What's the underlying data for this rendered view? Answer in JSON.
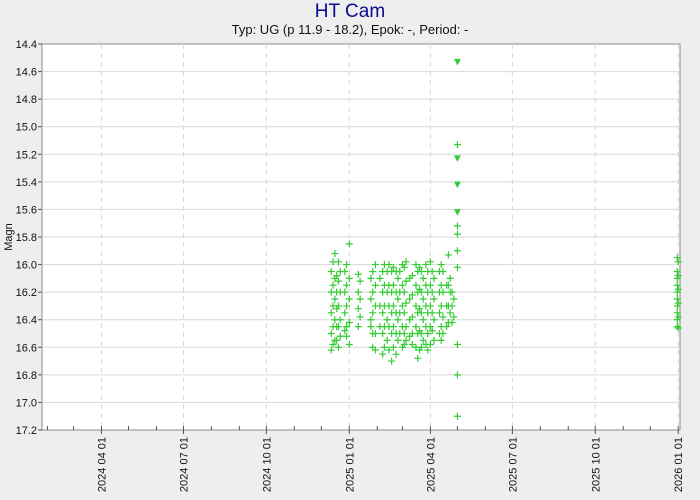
{
  "title": "HT Cam",
  "subtitle": "Typ: UG (p 11.9 - 18.2), Epok: -, Period: -",
  "colors": {
    "title": "#0a0a8c",
    "points": "#33cc33",
    "grid": "#d8d8d8",
    "background": "#eeeeee",
    "plot_background": "#ffffff"
  },
  "chart_data": {
    "type": "scatter",
    "title": "HT Cam",
    "subtitle": "Typ: UG (p 11.9 - 18.2), Epok: -, Period: -",
    "xlabel": "",
    "ylabel": "Magn",
    "xlim": [
      "2024-01-26",
      "2026-01-03"
    ],
    "ylim": [
      17.2,
      14.4
    ],
    "y_inverted": true,
    "grid": true,
    "x_ticks": [
      "2024 04 01",
      "2024 07 01",
      "2024 10 01",
      "2025 01 01",
      "2025 04 01",
      "2025 07 01",
      "2025 10 01",
      "2026 01 01"
    ],
    "y_ticks": [
      14.4,
      14.6,
      14.8,
      15.0,
      15.2,
      15.4,
      15.6,
      15.8,
      16.0,
      16.2,
      16.4,
      16.6,
      16.8,
      17.0,
      17.2
    ],
    "y_tick_labels": [
      "14.4",
      "14.6",
      "14.8",
      "15.0",
      "15.2",
      "15.4",
      "15.6",
      "15.8",
      "16.0",
      "16.2",
      "16.4",
      "16.6",
      "16.8",
      "17.0",
      "17.2"
    ],
    "series": [
      {
        "marker": "plus",
        "points": [
          [
            "2024-12-12",
            16.05
          ],
          [
            "2024-12-12",
            16.2
          ],
          [
            "2024-12-12",
            16.35
          ],
          [
            "2024-12-12",
            16.5
          ],
          [
            "2024-12-12",
            16.62
          ],
          [
            "2024-12-14",
            15.98
          ],
          [
            "2024-12-14",
            16.15
          ],
          [
            "2024-12-14",
            16.3
          ],
          [
            "2024-12-14",
            16.45
          ],
          [
            "2024-12-14",
            16.58
          ],
          [
            "2024-12-16",
            15.92
          ],
          [
            "2024-12-16",
            16.1
          ],
          [
            "2024-12-16",
            16.25
          ],
          [
            "2024-12-16",
            16.4
          ],
          [
            "2024-12-16",
            16.55
          ],
          [
            "2024-12-18",
            16.08
          ],
          [
            "2024-12-18",
            16.2
          ],
          [
            "2024-12-18",
            16.32
          ],
          [
            "2024-12-18",
            16.45
          ],
          [
            "2024-12-18",
            16.55
          ],
          [
            "2024-12-20",
            15.98
          ],
          [
            "2024-12-20",
            16.12
          ],
          [
            "2024-12-20",
            16.3
          ],
          [
            "2024-12-20",
            16.45
          ],
          [
            "2024-12-20",
            16.6
          ],
          [
            "2024-12-22",
            16.05
          ],
          [
            "2024-12-22",
            16.2
          ],
          [
            "2024-12-22",
            16.4
          ],
          [
            "2024-12-22",
            16.52
          ],
          [
            "2024-12-27",
            16.05
          ],
          [
            "2024-12-27",
            16.2
          ],
          [
            "2024-12-27",
            16.35
          ],
          [
            "2024-12-27",
            16.48
          ],
          [
            "2024-12-29",
            16.0
          ],
          [
            "2024-12-29",
            16.15
          ],
          [
            "2024-12-29",
            16.3
          ],
          [
            "2024-12-29",
            16.45
          ],
          [
            "2024-12-29",
            16.52
          ],
          [
            "2025-01-01",
            15.85
          ],
          [
            "2025-01-01",
            16.1
          ],
          [
            "2025-01-01",
            16.25
          ],
          [
            "2025-01-01",
            16.42
          ],
          [
            "2025-01-01",
            16.58
          ],
          [
            "2025-01-11",
            16.07
          ],
          [
            "2025-01-11",
            16.2
          ],
          [
            "2025-01-11",
            16.32
          ],
          [
            "2025-01-11",
            16.45
          ],
          [
            "2025-01-13",
            16.12
          ],
          [
            "2025-01-13",
            16.25
          ],
          [
            "2025-01-13",
            16.38
          ],
          [
            "2025-01-25",
            16.1
          ],
          [
            "2025-01-25",
            16.25
          ],
          [
            "2025-01-25",
            16.4
          ],
          [
            "2025-01-25",
            16.45
          ],
          [
            "2025-01-27",
            16.05
          ],
          [
            "2025-01-27",
            16.2
          ],
          [
            "2025-01-27",
            16.35
          ],
          [
            "2025-01-27",
            16.5
          ],
          [
            "2025-01-27",
            16.6
          ],
          [
            "2025-01-30",
            16.0
          ],
          [
            "2025-01-30",
            16.15
          ],
          [
            "2025-01-30",
            16.3
          ],
          [
            "2025-01-30",
            16.5
          ],
          [
            "2025-01-30",
            16.62
          ],
          [
            "2025-02-04",
            16.1
          ],
          [
            "2025-02-04",
            16.3
          ],
          [
            "2025-02-04",
            16.45
          ],
          [
            "2025-02-07",
            16.05
          ],
          [
            "2025-02-07",
            16.2
          ],
          [
            "2025-02-07",
            16.35
          ],
          [
            "2025-02-07",
            16.5
          ],
          [
            "2025-02-07",
            16.65
          ],
          [
            "2025-02-09",
            16.0
          ],
          [
            "2025-02-09",
            16.15
          ],
          [
            "2025-02-09",
            16.3
          ],
          [
            "2025-02-09",
            16.45
          ],
          [
            "2025-02-09",
            16.6
          ],
          [
            "2025-02-12",
            16.05
          ],
          [
            "2025-02-12",
            16.2
          ],
          [
            "2025-02-12",
            16.4
          ],
          [
            "2025-02-12",
            16.55
          ],
          [
            "2025-02-14",
            16.0
          ],
          [
            "2025-02-14",
            16.15
          ],
          [
            "2025-02-14",
            16.3
          ],
          [
            "2025-02-14",
            16.45
          ],
          [
            "2025-02-14",
            16.62
          ],
          [
            "2025-02-17",
            16.05
          ],
          [
            "2025-02-17",
            16.2
          ],
          [
            "2025-02-17",
            16.35
          ],
          [
            "2025-02-17",
            16.5
          ],
          [
            "2025-02-17",
            16.7
          ],
          [
            "2025-02-19",
            16.02
          ],
          [
            "2025-02-19",
            16.15
          ],
          [
            "2025-02-19",
            16.3
          ],
          [
            "2025-02-19",
            16.45
          ],
          [
            "2025-02-19",
            16.6
          ],
          [
            "2025-02-22",
            16.05
          ],
          [
            "2025-02-22",
            16.2
          ],
          [
            "2025-02-22",
            16.35
          ],
          [
            "2025-02-22",
            16.5
          ],
          [
            "2025-02-22",
            16.65
          ],
          [
            "2025-02-24",
            16.1
          ],
          [
            "2025-02-24",
            16.25
          ],
          [
            "2025-02-24",
            16.4
          ],
          [
            "2025-02-24",
            16.55
          ],
          [
            "2025-02-26",
            16.05
          ],
          [
            "2025-02-26",
            16.2
          ],
          [
            "2025-02-26",
            16.35
          ],
          [
            "2025-02-26",
            16.5
          ],
          [
            "2025-03-01",
            16.0
          ],
          [
            "2025-03-01",
            16.15
          ],
          [
            "2025-03-01",
            16.3
          ],
          [
            "2025-03-01",
            16.45
          ],
          [
            "2025-03-01",
            16.6
          ],
          [
            "2025-03-03",
            16.02
          ],
          [
            "2025-03-03",
            16.2
          ],
          [
            "2025-03-03",
            16.35
          ],
          [
            "2025-03-03",
            16.5
          ],
          [
            "2025-03-03",
            16.58
          ],
          [
            "2025-03-05",
            15.98
          ],
          [
            "2025-03-05",
            16.12
          ],
          [
            "2025-03-05",
            16.28
          ],
          [
            "2025-03-05",
            16.45
          ],
          [
            "2025-03-05",
            16.55
          ],
          [
            "2025-03-09",
            16.1
          ],
          [
            "2025-03-09",
            16.25
          ],
          [
            "2025-03-09",
            16.4
          ],
          [
            "2025-03-09",
            16.52
          ],
          [
            "2025-03-12",
            16.08
          ],
          [
            "2025-03-12",
            16.22
          ],
          [
            "2025-03-12",
            16.38
          ],
          [
            "2025-03-12",
            16.5
          ],
          [
            "2025-03-12",
            16.58
          ],
          [
            "2025-03-16",
            16.0
          ],
          [
            "2025-03-16",
            16.15
          ],
          [
            "2025-03-16",
            16.3
          ],
          [
            "2025-03-16",
            16.45
          ],
          [
            "2025-03-16",
            16.6
          ],
          [
            "2025-03-18",
            16.05
          ],
          [
            "2025-03-18",
            16.2
          ],
          [
            "2025-03-18",
            16.35
          ],
          [
            "2025-03-18",
            16.5
          ],
          [
            "2025-03-18",
            16.68
          ],
          [
            "2025-03-20",
            16.02
          ],
          [
            "2025-03-20",
            16.18
          ],
          [
            "2025-03-20",
            16.32
          ],
          [
            "2025-03-20",
            16.48
          ],
          [
            "2025-03-20",
            16.62
          ],
          [
            "2025-03-22",
            16.05
          ],
          [
            "2025-03-22",
            16.2
          ],
          [
            "2025-03-22",
            16.35
          ],
          [
            "2025-03-22",
            16.5
          ],
          [
            "2025-03-22",
            16.6
          ],
          [
            "2025-03-24",
            16.1
          ],
          [
            "2025-03-24",
            16.25
          ],
          [
            "2025-03-24",
            16.4
          ],
          [
            "2025-03-24",
            16.55
          ],
          [
            "2025-03-27",
            16.0
          ],
          [
            "2025-03-27",
            16.15
          ],
          [
            "2025-03-27",
            16.3
          ],
          [
            "2025-03-27",
            16.45
          ],
          [
            "2025-03-27",
            16.58
          ],
          [
            "2025-03-29",
            16.05
          ],
          [
            "2025-03-29",
            16.2
          ],
          [
            "2025-03-29",
            16.35
          ],
          [
            "2025-03-29",
            16.5
          ],
          [
            "2025-03-29",
            16.62
          ],
          [
            "2025-04-01",
            15.98
          ],
          [
            "2025-04-01",
            16.15
          ],
          [
            "2025-04-01",
            16.3
          ],
          [
            "2025-04-01",
            16.45
          ],
          [
            "2025-04-01",
            16.58
          ],
          [
            "2025-04-03",
            16.05
          ],
          [
            "2025-04-03",
            16.2
          ],
          [
            "2025-04-03",
            16.35
          ],
          [
            "2025-04-03",
            16.48
          ],
          [
            "2025-04-05",
            16.1
          ],
          [
            "2025-04-05",
            16.25
          ],
          [
            "2025-04-05",
            16.4
          ],
          [
            "2025-04-05",
            16.55
          ],
          [
            "2025-04-11",
            16.05
          ],
          [
            "2025-04-11",
            16.2
          ],
          [
            "2025-04-11",
            16.35
          ],
          [
            "2025-04-11",
            16.5
          ],
          [
            "2025-04-13",
            16.0
          ],
          [
            "2025-04-13",
            16.15
          ],
          [
            "2025-04-13",
            16.3
          ],
          [
            "2025-04-13",
            16.45
          ],
          [
            "2025-04-13",
            16.55
          ],
          [
            "2025-04-15",
            16.05
          ],
          [
            "2025-04-15",
            16.2
          ],
          [
            "2025-04-15",
            16.38
          ],
          [
            "2025-04-15",
            16.5
          ],
          [
            "2025-04-19",
            16.15
          ],
          [
            "2025-04-19",
            16.3
          ],
          [
            "2025-04-19",
            16.45
          ],
          [
            "2025-04-21",
            15.93
          ],
          [
            "2025-04-21",
            16.15
          ],
          [
            "2025-04-21",
            16.3
          ],
          [
            "2025-04-21",
            16.42
          ],
          [
            "2025-04-23",
            16.1
          ],
          [
            "2025-04-23",
            16.2
          ],
          [
            "2025-04-23",
            16.35
          ],
          [
            "2025-04-25",
            16.2
          ],
          [
            "2025-04-25",
            16.3
          ],
          [
            "2025-04-25",
            16.42
          ],
          [
            "2025-04-27",
            16.25
          ],
          [
            "2025-04-27",
            16.38
          ],
          [
            "2025-05-01",
            15.13
          ],
          [
            "2025-05-01",
            15.72
          ],
          [
            "2025-05-01",
            15.78
          ],
          [
            "2025-05-01",
            15.9
          ],
          [
            "2025-05-01",
            16.02
          ],
          [
            "2025-05-01",
            16.58
          ],
          [
            "2025-05-01",
            16.8
          ],
          [
            "2025-05-01",
            17.1
          ]
        ]
      },
      {
        "marker": "triangle-down",
        "points": [
          [
            "2025-05-01",
            14.53
          ],
          [
            "2025-05-01",
            15.23
          ],
          [
            "2025-05-01",
            15.42
          ],
          [
            "2025-05-01",
            15.62
          ]
        ]
      },
      {
        "marker": "plus",
        "points": [
          [
            "2025-12-31",
            15.95
          ],
          [
            "2025-12-31",
            16.05
          ],
          [
            "2025-12-31",
            16.1
          ],
          [
            "2025-12-31",
            16.15
          ],
          [
            "2025-12-31",
            16.2
          ],
          [
            "2025-12-31",
            16.25
          ],
          [
            "2025-12-31",
            16.3
          ],
          [
            "2025-12-31",
            16.35
          ],
          [
            "2025-12-31",
            16.4
          ],
          [
            "2025-12-31",
            16.45
          ],
          [
            "2026-01-01",
            15.98
          ],
          [
            "2026-01-01",
            16.08
          ],
          [
            "2026-01-01",
            16.18
          ],
          [
            "2026-01-01",
            16.28
          ],
          [
            "2026-01-01",
            16.38
          ],
          [
            "2026-01-01",
            16.46
          ]
        ]
      }
    ]
  }
}
